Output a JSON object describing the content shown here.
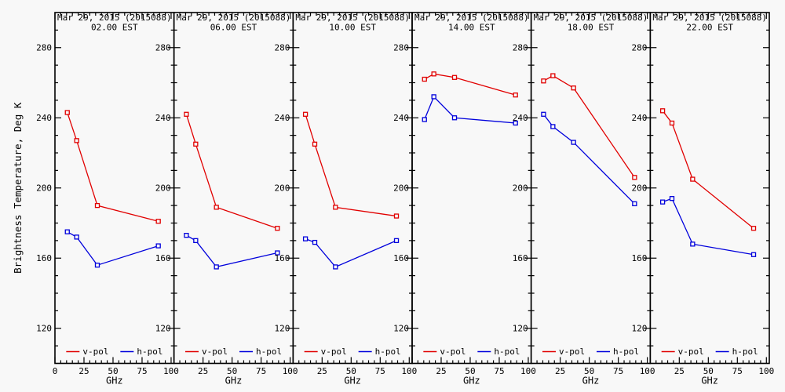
{
  "figure": {
    "background_color": "#f8f8f8",
    "axis_color": "#000000",
    "text_color": "#000000"
  },
  "chart_data": {
    "type": "line",
    "title_line1": "Mar 29, 2015 (2015088)",
    "ylabel": "Brightness Temperature, Deg K",
    "xlabel": "GHz",
    "x": [
      10.65,
      18.7,
      36.5,
      89.0
    ],
    "xlim": [
      0,
      102.5
    ],
    "ylim": [
      100,
      300
    ],
    "x_ticks": [
      0,
      25,
      50,
      75,
      100
    ],
    "x_minor_step": 5,
    "y_ticks": [
      120,
      160,
      200,
      240,
      280
    ],
    "y_minor_step": 10,
    "grid": false,
    "legend_position": "bottom-inside-each-panel",
    "legend": [
      {
        "label": "v-pol",
        "color": "#e10000"
      },
      {
        "label": "h-pol",
        "color": "#0000dc"
      }
    ],
    "marker": "open-square",
    "panels": [
      {
        "title": "Mar 29, 2015 (2015088)",
        "subtitle": "02.00 EST",
        "series": [
          {
            "name": "v-pol",
            "color": "#e10000",
            "values": [
              243,
              227,
              190,
              181
            ]
          },
          {
            "name": "h-pol",
            "color": "#0000dc",
            "values": [
              175,
              172,
              156,
              167
            ]
          }
        ]
      },
      {
        "title": "Mar 29, 2015 (2015088)",
        "subtitle": "06.00 EST",
        "series": [
          {
            "name": "v-pol",
            "color": "#e10000",
            "values": [
              242,
              225,
              189,
              177
            ]
          },
          {
            "name": "h-pol",
            "color": "#0000dc",
            "values": [
              173,
              170,
              155,
              163
            ]
          }
        ]
      },
      {
        "title": "Mar 29, 2015 (2015088)",
        "subtitle": "10.00 EST",
        "series": [
          {
            "name": "v-pol",
            "color": "#e10000",
            "values": [
              242,
              225,
              189,
              184
            ]
          },
          {
            "name": "h-pol",
            "color": "#0000dc",
            "values": [
              171,
              169,
              155,
              170
            ]
          }
        ]
      },
      {
        "title": "Mar 29, 2015 (2015088)",
        "subtitle": "14.00 EST",
        "series": [
          {
            "name": "v-pol",
            "color": "#e10000",
            "values": [
              262,
              265,
              263,
              253
            ]
          },
          {
            "name": "h-pol",
            "color": "#0000dc",
            "values": [
              239,
              252,
              240,
              237
            ]
          }
        ]
      },
      {
        "title": "Mar 29, 2015 (2015088)",
        "subtitle": "18.00 EST",
        "series": [
          {
            "name": "v-pol",
            "color": "#e10000",
            "values": [
              261,
              264,
              257,
              206
            ]
          },
          {
            "name": "h-pol",
            "color": "#0000dc",
            "values": [
              242,
              235,
              226,
              191
            ]
          }
        ]
      },
      {
        "title": "Mar 29, 2015 (2015088)",
        "subtitle": "22.00 EST",
        "series": [
          {
            "name": "v-pol",
            "color": "#e10000",
            "values": [
              244,
              237,
              205,
              177
            ]
          },
          {
            "name": "h-pol",
            "color": "#0000dc",
            "values": [
              192,
              194,
              168,
              162
            ]
          }
        ]
      }
    ]
  }
}
